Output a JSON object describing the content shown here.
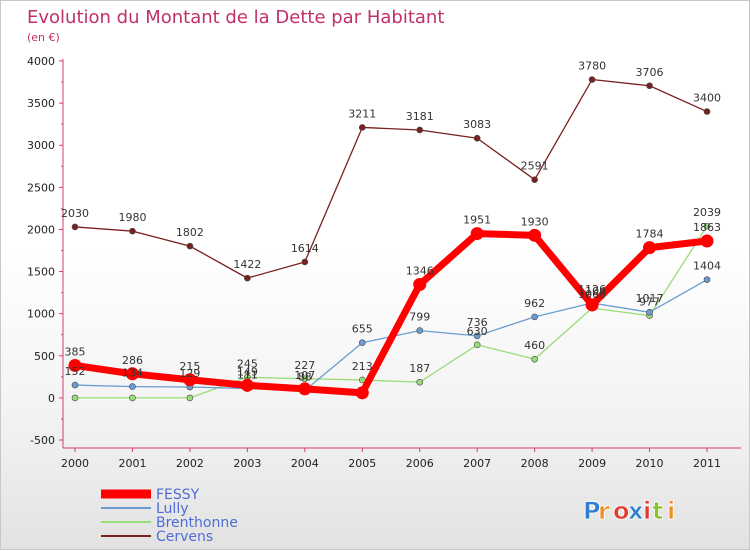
{
  "chart_data": {
    "type": "line",
    "title": "Evolution du Montant de la Dette par Habitant",
    "subtitle": "(en €)",
    "xlabel": "",
    "ylabel": "",
    "categories": [
      "2000",
      "2001",
      "2002",
      "2003",
      "2004",
      "2005",
      "2006",
      "2007",
      "2008",
      "2009",
      "2010",
      "2011"
    ],
    "ylim": [
      -500,
      4000
    ],
    "yticks": [
      -500,
      0,
      500,
      1000,
      1500,
      2000,
      2500,
      3000,
      3500,
      4000
    ],
    "grid": false,
    "legend_placement": "bottom-left",
    "series": [
      {
        "name": "FESSY",
        "color": "#ff0000",
        "values": [
          385,
          286,
          215,
          149,
          107,
          60,
          1346,
          1951,
          1930,
          1104,
          1784,
          1863
        ],
        "labels": [
          "385",
          "286",
          "215",
          "149",
          "107",
          "",
          "1346",
          "1951",
          "1930",
          "1104",
          "1784",
          "1863"
        ]
      },
      {
        "name": "Lully",
        "color": "#6a9ccf",
        "values": [
          152,
          134,
          129,
          111,
          88,
          655,
          799,
          736,
          962,
          1126,
          1017,
          1404
        ],
        "labels": [
          "152",
          "134",
          "129",
          "111",
          "88",
          "655",
          "799",
          "736",
          "962",
          "1126",
          "1017",
          "1404"
        ]
      },
      {
        "name": "Brenthonne",
        "color": "#99dd77",
        "values": [
          0,
          0,
          0,
          245,
          227,
          213,
          187,
          630,
          460,
          1066,
          977,
          2039
        ],
        "labels": [
          "",
          "",
          "",
          "245",
          "227",
          "213",
          "187",
          "630",
          "460",
          "1066",
          "977",
          "2039"
        ]
      },
      {
        "name": "Cervens",
        "color": "#7a2020",
        "values": [
          2030,
          1980,
          1802,
          1422,
          1614,
          3211,
          3181,
          3083,
          2591,
          3780,
          3706,
          3400
        ],
        "labels": [
          "2030",
          "1980",
          "1802",
          "1422",
          "1614",
          "3211",
          "3181",
          "3083",
          "2591",
          "3780",
          "3706",
          "3400"
        ]
      }
    ]
  },
  "logo": {
    "text": "Proxiti",
    "letters": [
      {
        "ch": "P",
        "color": "#2f7fd0"
      },
      {
        "ch": "r",
        "color": "#f09020"
      },
      {
        "ch": "o",
        "color": "#e23a2e"
      },
      {
        "ch": "x",
        "color": "#2f7fd0"
      },
      {
        "ch": "i",
        "color": "#e23a2e"
      },
      {
        "ch": "t",
        "color": "#8bbf2f"
      },
      {
        "ch": "i",
        "color": "#f09020"
      }
    ]
  }
}
